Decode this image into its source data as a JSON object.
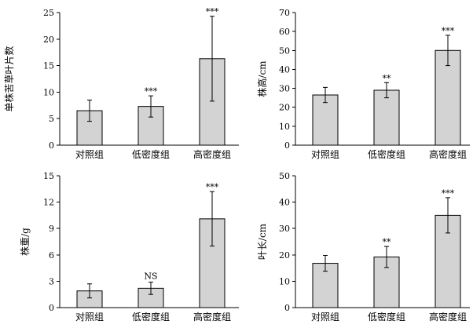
{
  "chart_data": [
    {
      "type": "bar",
      "categories": [
        "对照组",
        "低密度组",
        "高密度组"
      ],
      "values": [
        6.5,
        7.3,
        16.3
      ],
      "errors": [
        2.0,
        2.0,
        8.0
      ],
      "significance": [
        "",
        "***",
        "***"
      ],
      "xlabel": "",
      "ylabel": "单株苦草叶片数",
      "ylim": [
        0,
        25
      ],
      "yticks": [
        0,
        5,
        10,
        15,
        20,
        25
      ],
      "grid": false
    },
    {
      "type": "bar",
      "categories": [
        "对照组",
        "低密度组",
        "高密度组"
      ],
      "values": [
        26.5,
        29.0,
        50.0
      ],
      "errors": [
        4.0,
        4.0,
        8.0
      ],
      "significance": [
        "",
        "**",
        "***"
      ],
      "xlabel": "",
      "ylabel": "株高/cm",
      "ylim": [
        0,
        70
      ],
      "yticks": [
        0,
        10,
        20,
        30,
        40,
        50,
        60,
        70
      ],
      "grid": false
    },
    {
      "type": "bar",
      "categories": [
        "对照组",
        "低密度组",
        "高密度组"
      ],
      "values": [
        1.9,
        2.2,
        10.1
      ],
      "errors": [
        0.8,
        0.7,
        3.1
      ],
      "significance": [
        "",
        "NS",
        "***"
      ],
      "xlabel": "",
      "ylabel": "株重/g",
      "ylim": [
        0,
        15
      ],
      "yticks": [
        0,
        3,
        6,
        9,
        12,
        15
      ],
      "grid": false
    },
    {
      "type": "bar",
      "categories": [
        "对照组",
        "低密度组",
        "高密度组"
      ],
      "values": [
        16.8,
        19.2,
        35.0
      ],
      "errors": [
        3.0,
        4.0,
        6.7
      ],
      "significance": [
        "",
        "**",
        "***"
      ],
      "xlabel": "",
      "ylabel": "叶长/cm",
      "ylim": [
        0,
        50
      ],
      "yticks": [
        0,
        10,
        20,
        30,
        40,
        50
      ],
      "grid": false
    }
  ]
}
